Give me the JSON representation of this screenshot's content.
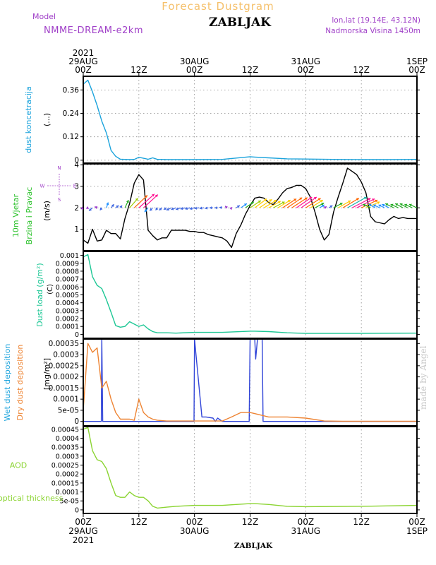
{
  "header": {
    "title": "Forecast Dustgram",
    "station": "ZABLJAK",
    "model_label": "Model",
    "model_name": "NMME-DREAM-e2km",
    "coords": "lon,lat (19.14E, 43.12N)",
    "altitude": "Nadmorska Visina 1450m",
    "watermark": "made by Angel",
    "footer_station": "ZABLJAK"
  },
  "time_axis": {
    "hours_total": 72,
    "ticks": [
      {
        "h": 0,
        "top": [
          "2021",
          "29AUG",
          "00Z"
        ],
        "bottom": [
          "00Z",
          "29AUG",
          "2021"
        ]
      },
      {
        "h": 12,
        "top": [
          "12Z"
        ],
        "bottom": [
          "12Z"
        ]
      },
      {
        "h": 24,
        "top": [
          "30AUG",
          "00Z"
        ],
        "bottom": [
          "00Z",
          "30AUG"
        ]
      },
      {
        "h": 36,
        "top": [
          "12Z"
        ],
        "bottom": [
          "12Z"
        ]
      },
      {
        "h": 48,
        "top": [
          "31AUG",
          "00Z"
        ],
        "bottom": [
          "00Z",
          "31AUG"
        ]
      },
      {
        "h": 60,
        "top": [
          "12Z"
        ],
        "bottom": [
          "12Z"
        ]
      },
      {
        "h": 72,
        "top": [
          "1SEP",
          "00Z"
        ],
        "bottom": [
          "00Z",
          "1SEP"
        ]
      }
    ]
  },
  "colors": {
    "concentration": "#1ba3dc",
    "wind_speed": "#000000",
    "dust_load": "#1dc795",
    "wet_deposition": "#3145d8",
    "dry_deposition": "#ee8433",
    "aod": "#8bd432",
    "wind_arrow_palette": [
      "#9933cc",
      "#4169e1",
      "#1e90ff",
      "#22aa22",
      "#99cc00",
      "#ffcc00",
      "#ff6600",
      "#ff1493",
      "#20b2aa"
    ]
  },
  "chart_data": [
    {
      "type": "line",
      "id": "dust-concentration",
      "ylabel": "dust koncetracija",
      "unit": "(...)",
      "ylim": [
        -0.015,
        0.43
      ],
      "yticks": [
        "0",
        "0.12",
        "0.24",
        "0.36"
      ],
      "ytick_values": [
        0,
        0.12,
        0.24,
        0.36
      ],
      "grid": true,
      "x": [
        0,
        1,
        2,
        3,
        4,
        5,
        6,
        7,
        8,
        9,
        10,
        11,
        12,
        13,
        14,
        15,
        16,
        17,
        18,
        20,
        24,
        30,
        36,
        37,
        40,
        44,
        48,
        54,
        60,
        66,
        72
      ],
      "y": [
        0.39,
        0.41,
        0.35,
        0.28,
        0.2,
        0.14,
        0.05,
        0.02,
        0.005,
        0.004,
        0.003,
        0.004,
        0.015,
        0.01,
        0.005,
        0.012,
        0.004,
        0.004,
        0.003,
        0.003,
        0.003,
        0.004,
        0.018,
        0.016,
        0.012,
        0.007,
        0.006,
        0.004,
        0.003,
        0.003,
        0.004
      ]
    },
    {
      "type": "line",
      "id": "wind",
      "ylabel": "10m Vjetar Brzina i Pravac",
      "unit": "(m/s)",
      "compass": {
        "n": "N",
        "s": "S",
        "w": "W",
        "e": "E"
      },
      "ylim": [
        0,
        4.05
      ],
      "yticks": [
        "1",
        "2",
        "3",
        "4"
      ],
      "ytick_values": [
        1,
        2,
        3,
        4
      ],
      "grid": true,
      "x": [
        0,
        1,
        2,
        3,
        4,
        5,
        6,
        7,
        8,
        9,
        10,
        11,
        12,
        13,
        14,
        15,
        16,
        17,
        18,
        19,
        20,
        21,
        22,
        23,
        24,
        25,
        26,
        27,
        28,
        29,
        30,
        31,
        32,
        33,
        34,
        35,
        36,
        37,
        38,
        39,
        40,
        41,
        42,
        43,
        44,
        45,
        46,
        47,
        48,
        49,
        50,
        51,
        52,
        53,
        54,
        55,
        56,
        57,
        58,
        59,
        60,
        61,
        62,
        63,
        64,
        65,
        66,
        67,
        68,
        69,
        70,
        71,
        72
      ],
      "y": [
        0.5,
        0.35,
        1.0,
        0.45,
        0.5,
        0.95,
        0.8,
        0.8,
        0.55,
        1.5,
        2.2,
        3.15,
        3.55,
        3.3,
        0.95,
        0.7,
        0.5,
        0.6,
        0.6,
        0.95,
        0.95,
        0.95,
        0.95,
        0.9,
        0.9,
        0.85,
        0.85,
        0.75,
        0.7,
        0.65,
        0.6,
        0.45,
        0.15,
        0.8,
        1.2,
        1.7,
        2.1,
        2.45,
        2.5,
        2.45,
        2.25,
        2.15,
        2.4,
        2.7,
        2.9,
        2.95,
        3.05,
        3.05,
        2.9,
        2.5,
        1.8,
        1.0,
        0.5,
        0.75,
        1.8,
        2.5,
        3.15,
        3.85,
        3.7,
        3.55,
        3.2,
        2.7,
        1.6,
        1.35,
        1.3,
        1.25,
        1.45,
        1.6,
        1.5,
        1.55,
        1.5,
        1.5,
        1.5
      ]
    },
    {
      "type": "line",
      "id": "dust-load",
      "ylabel": "Dust load (g/m²)",
      "unit": "(C)",
      "ylim": [
        -5e-05,
        0.00105
      ],
      "yticks": [
        "0",
        "0.0001",
        "0.0002",
        "0.0003",
        "0.0004",
        "0.0005",
        "0.0006",
        "0.0007",
        "0.0008",
        "0.0009",
        "0.001"
      ],
      "ytick_values": [
        0,
        0.0001,
        0.0002,
        0.0003,
        0.0004,
        0.0005,
        0.0006,
        0.0007,
        0.0008,
        0.0009,
        0.001
      ],
      "grid": false,
      "x": [
        0,
        1,
        2,
        3,
        4,
        5,
        6,
        7,
        8,
        9,
        10,
        11,
        12,
        13,
        14,
        15,
        16,
        18,
        20,
        24,
        30,
        36,
        37,
        40,
        44,
        48,
        60,
        72
      ],
      "y": [
        0.00098,
        0.00101,
        0.00073,
        0.00062,
        0.00058,
        0.00044,
        0.00028,
        0.00011,
        9e-05,
        0.0001,
        0.00016,
        0.00013,
        0.0001,
        0.00012,
        7e-05,
        3.5e-05,
        2e-05,
        2e-05,
        1.5e-05,
        2.5e-05,
        2.5e-05,
        4e-05,
        4e-05,
        3.5e-05,
        2e-05,
        1.2e-05,
        1.2e-05,
        1.5e-05
      ]
    },
    {
      "type": "line",
      "id": "deposition",
      "ylabel": "Wet dust deposition",
      "ylabel2": "Dry dust deposition",
      "unit": "[mg/m²]",
      "ylim": [
        -2e-05,
        0.00037
      ],
      "yticks": [
        "0",
        "5e-05",
        "0.0001",
        "0.00015",
        "0.0002",
        "0.00025",
        "0.0003",
        "0.00035"
      ],
      "ytick_values": [
        0,
        5e-05,
        0.0001,
        0.00015,
        0.0002,
        0.00025,
        0.0003,
        0.00035
      ],
      "grid": false,
      "series": [
        {
          "name": "Wet dust deposition",
          "x": [
            0,
            3.9,
            4.0,
            4.2,
            23.9,
            24.0,
            25.6,
            26.5,
            28.0,
            28.5,
            29.0,
            30.0,
            30.5,
            35.8,
            36.0,
            37.0,
            37.2,
            37.6,
            38.6,
            38.8,
            72
          ],
          "y": [
            0,
            0,
            0.0004,
            0,
            0,
            0.0004,
            2e-05,
            2e-05,
            1.5e-05,
            0,
            1.5e-05,
            0,
            0,
            0,
            0.0004,
            0.0004,
            0.00028,
            0.0004,
            0.0004,
            0,
            0
          ]
        },
        {
          "name": "Dry dust deposition",
          "x": [
            0,
            1,
            2,
            3,
            4,
            5,
            6,
            7,
            8,
            9,
            10,
            11,
            12,
            13,
            14,
            15,
            16,
            18,
            20,
            24,
            30,
            32,
            34,
            36,
            38,
            40,
            44,
            48,
            52,
            56,
            60,
            72
          ],
          "y": [
            5e-05,
            0.00035,
            0.00031,
            0.00033,
            0.00015,
            0.00018,
            0.0001,
            4e-05,
            1e-05,
            1e-05,
            1e-05,
            5e-06,
            0.0001,
            4e-05,
            2e-05,
            1e-05,
            5e-06,
            2e-06,
            2e-06,
            2e-06,
            2e-06,
            2e-05,
            4e-05,
            4e-05,
            3e-05,
            2e-05,
            2e-05,
            1.5e-05,
            2e-06,
            1e-06,
            1e-06,
            1e-06
          ]
        }
      ]
    },
    {
      "type": "line",
      "id": "aod",
      "ylabel": "AOD",
      "ylabel2": "optical thickness",
      "ylim": [
        -2e-05,
        0.000465
      ],
      "yticks": [
        "0",
        "5e-05",
        "0.0001",
        "0.00015",
        "0.0002",
        "0.00025",
        "0.0003",
        "0.00035",
        "0.0004",
        "0.00045"
      ],
      "ytick_values": [
        0,
        5e-05,
        0.0001,
        0.00015,
        0.0002,
        0.00025,
        0.0003,
        0.00035,
        0.0004,
        0.00045
      ],
      "grid": false,
      "x": [
        0,
        1,
        2,
        3,
        4,
        5,
        6,
        7,
        8,
        9,
        10,
        11,
        12,
        13,
        14,
        15,
        16,
        18,
        20,
        24,
        30,
        36,
        37,
        40,
        44,
        48,
        60,
        72
      ],
      "y": [
        0.00045,
        0.00046,
        0.00033,
        0.00028,
        0.00027,
        0.00023,
        0.00015,
        8e-05,
        7e-05,
        7e-05,
        0.0001,
        8e-05,
        7e-05,
        7e-05,
        5e-05,
        2e-05,
        1e-05,
        1.5e-05,
        2e-05,
        2.5e-05,
        2.5e-05,
        3.5e-05,
        3.5e-05,
        3e-05,
        2e-05,
        1.8e-05,
        2e-05,
        2.5e-05
      ]
    }
  ],
  "wind_vectors": {
    "description_units": "u, v components in m/s, one per hour",
    "x": [
      0,
      1,
      2,
      3,
      4,
      5,
      6,
      7,
      8,
      9,
      10,
      11,
      12,
      13,
      14,
      15,
      16,
      17,
      18,
      19,
      20,
      21,
      22,
      23,
      24,
      25,
      26,
      27,
      28,
      29,
      30,
      31,
      32,
      33,
      34,
      35,
      36,
      37,
      38,
      39,
      40,
      41,
      42,
      43,
      44,
      45,
      46,
      47,
      48,
      49,
      50,
      51,
      52,
      53,
      54,
      55,
      56,
      57,
      58,
      59,
      60,
      61,
      62,
      63,
      64,
      65,
      66,
      67,
      68,
      69,
      70,
      71,
      72
    ],
    "u": [
      -0.4,
      -0.3,
      -0.6,
      -0.4,
      -0.3,
      0.3,
      0.5,
      0.5,
      0.3,
      0.6,
      1.4,
      2.2,
      2.6,
      2.4,
      -0.6,
      -0.5,
      -0.3,
      -0.5,
      -0.5,
      -0.8,
      -0.8,
      -0.8,
      -0.8,
      -0.8,
      -0.8,
      -0.8,
      -0.7,
      -0.6,
      -0.6,
      -0.5,
      -0.5,
      -0.3,
      0.1,
      0.6,
      1.0,
      1.4,
      1.8,
      2.0,
      2.1,
      2.1,
      2.0,
      1.9,
      2.1,
      2.3,
      2.5,
      2.6,
      2.6,
      2.6,
      2.5,
      2.1,
      1.5,
      0.8,
      0.4,
      0.6,
      1.5,
      2.1,
      2.7,
      3.2,
      3.1,
      3.0,
      2.7,
      2.3,
      -1.3,
      -1.1,
      -1.1,
      -1.0,
      -1.2,
      -1.4,
      -1.3,
      -1.3,
      -1.3,
      -1.3,
      -1.3
    ],
    "v": [
      -0.2,
      -0.1,
      -0.5,
      0.2,
      -0.4,
      0.9,
      0.6,
      0.4,
      0.4,
      1.3,
      1.6,
      2.1,
      2.3,
      2.2,
      -0.7,
      -0.5,
      -0.4,
      -0.4,
      -0.3,
      -0.4,
      -0.3,
      -0.3,
      -0.2,
      -0.2,
      -0.2,
      -0.1,
      -0.1,
      -0.1,
      0.0,
      0.0,
      0.1,
      0.3,
      0.1,
      0.4,
      0.7,
      1.0,
      1.2,
      1.5,
      1.4,
      1.3,
      1.1,
      1.0,
      1.3,
      1.5,
      1.7,
      1.7,
      1.8,
      1.8,
      1.6,
      1.3,
      0.8,
      0.5,
      0.2,
      0.4,
      0.8,
      1.2,
      1.6,
      1.8,
      1.6,
      1.5,
      1.3,
      1.0,
      0.6,
      0.6,
      0.5,
      0.5,
      0.6,
      0.7,
      0.6,
      0.7,
      0.7,
      0.6,
      0.6
    ]
  }
}
